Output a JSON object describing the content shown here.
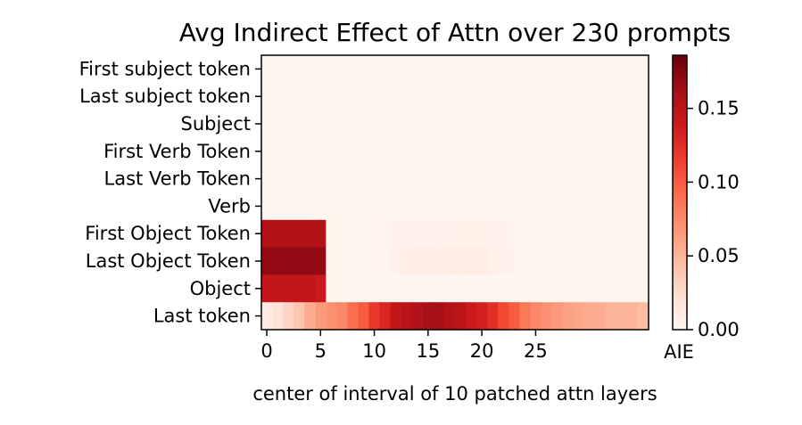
{
  "chart_data": {
    "type": "heatmap",
    "title": "Avg Indirect Effect of Attn over 230 prompts",
    "xlabel": "center of interval of 10 patched attn layers",
    "ylabel": "",
    "colorbar_label": "AIE",
    "colormap": "Reds",
    "vmin": 0.0,
    "vmax": 0.186,
    "rows": [
      "First subject token",
      "Last subject token",
      "Subject",
      "First Verb Token",
      "Last Verb Token",
      "Verb",
      "First Object Token",
      "Last Object Token",
      "Object",
      "Last token"
    ],
    "x_ticks": [
      0,
      5,
      10,
      15,
      20,
      25
    ],
    "x_tick_labels": [
      "0",
      "5",
      "10",
      "15",
      "20",
      "25"
    ],
    "colorbar_ticks": [
      0.0,
      0.05,
      0.1,
      0.15
    ],
    "colorbar_tick_labels": [
      "0.00",
      "0.05",
      "0.10",
      "0.15"
    ],
    "num_columns": 36,
    "values": [
      [
        0,
        0,
        0,
        0,
        0,
        0,
        0,
        0,
        0,
        0,
        0,
        0,
        0,
        0,
        0,
        0,
        0,
        0,
        0,
        0,
        0,
        0,
        0,
        0,
        0,
        0,
        0,
        0,
        0,
        0,
        0,
        0,
        0,
        0,
        0,
        0
      ],
      [
        0,
        0,
        0,
        0,
        0,
        0,
        0,
        0,
        0,
        0,
        0,
        0,
        0,
        0,
        0,
        0,
        0,
        0,
        0,
        0,
        0,
        0,
        0,
        0,
        0,
        0,
        0,
        0,
        0,
        0,
        0,
        0,
        0,
        0,
        0,
        0
      ],
      [
        0,
        0,
        0,
        0,
        0,
        0,
        0,
        0,
        0,
        0,
        0,
        0,
        0,
        0,
        0,
        0,
        0,
        0,
        0,
        0,
        0,
        0,
        0,
        0,
        0,
        0,
        0,
        0,
        0,
        0,
        0,
        0,
        0,
        0,
        0,
        0
      ],
      [
        0,
        0,
        0,
        0,
        0,
        0,
        0,
        0,
        0,
        0,
        0,
        0,
        0,
        0,
        0,
        0,
        0,
        0,
        0,
        0,
        0,
        0,
        0,
        0,
        0,
        0,
        0,
        0,
        0,
        0,
        0,
        0,
        0,
        0,
        0,
        0
      ],
      [
        0,
        0,
        0,
        0,
        0,
        0,
        0,
        0,
        0,
        0,
        0,
        0,
        0,
        0,
        0,
        0,
        0,
        0,
        0,
        0,
        0,
        0,
        0,
        0,
        0,
        0,
        0,
        0,
        0,
        0,
        0,
        0,
        0,
        0,
        0,
        0
      ],
      [
        0,
        0,
        0,
        0,
        0,
        0,
        0,
        0,
        0,
        0,
        0,
        0,
        0,
        0,
        0,
        0,
        0,
        0,
        0,
        0,
        0,
        0,
        0,
        0,
        0,
        0,
        0,
        0,
        0,
        0,
        0,
        0,
        0,
        0,
        0,
        0
      ],
      [
        0.155,
        0.155,
        0.155,
        0.155,
        0.155,
        0.155,
        0,
        0,
        0,
        0,
        0,
        0,
        0.003,
        0.004,
        0.004,
        0.004,
        0.005,
        0.005,
        0.006,
        0.006,
        0.005,
        0.004,
        0.003,
        0.002,
        0,
        0,
        0,
        0,
        0,
        0,
        0,
        0,
        0,
        0,
        0,
        0
      ],
      [
        0.17,
        0.17,
        0.17,
        0.17,
        0.17,
        0.17,
        0,
        0,
        0,
        0,
        0,
        0,
        0.006,
        0.007,
        0.008,
        0.008,
        0.008,
        0.009,
        0.01,
        0.01,
        0.009,
        0.006,
        0.004,
        0.003,
        0,
        0,
        0,
        0,
        0,
        0,
        0,
        0,
        0,
        0,
        0,
        0
      ],
      [
        0.145,
        0.145,
        0.145,
        0.145,
        0.145,
        0.14,
        0,
        0,
        0,
        0,
        0,
        0,
        0,
        0,
        0,
        0,
        0,
        0,
        0,
        0,
        0,
        0,
        0,
        0,
        0,
        0,
        0,
        0,
        0,
        0,
        0,
        0,
        0,
        0,
        0,
        0
      ],
      [
        0.012,
        0.02,
        0.03,
        0.04,
        0.055,
        0.065,
        0.07,
        0.075,
        0.09,
        0.1,
        0.12,
        0.13,
        0.145,
        0.15,
        0.155,
        0.16,
        0.16,
        0.155,
        0.15,
        0.14,
        0.135,
        0.125,
        0.11,
        0.1,
        0.085,
        0.075,
        0.07,
        0.065,
        0.06,
        0.058,
        0.055,
        0.055,
        0.05,
        0.05,
        0.05,
        0.045
      ]
    ]
  }
}
